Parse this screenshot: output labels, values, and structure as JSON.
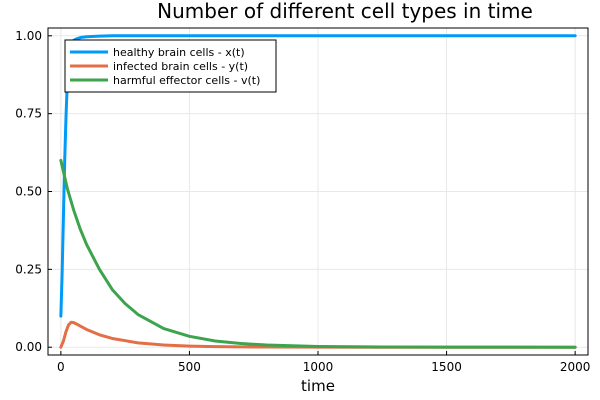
{
  "chart_data": {
    "type": "line",
    "title": "Number of different cell types in time",
    "xlabel": "time",
    "ylabel": "",
    "xlim": [
      -50,
      2050
    ],
    "ylim": [
      -0.025,
      1.025
    ],
    "xticks": [
      0,
      500,
      1000,
      1500,
      2000
    ],
    "xtick_labels": [
      "0",
      "500",
      "1000",
      "1500",
      "2000"
    ],
    "yticks": [
      0,
      0.25,
      0.5,
      0.75,
      1.0
    ],
    "ytick_labels": [
      "0.00",
      "0.25",
      "0.50",
      "0.75",
      "1.00"
    ],
    "grid": true,
    "legend_position": "top-left",
    "series": [
      {
        "name": "healthy brain cells - x(t)",
        "color": "#009af9",
        "x": [
          0,
          5,
          10,
          15,
          20,
          25,
          30,
          35,
          40,
          50,
          60,
          80,
          100,
          150,
          200,
          300,
          500,
          1000,
          1500,
          2000
        ],
        "y": [
          0.1,
          0.24,
          0.42,
          0.6,
          0.74,
          0.85,
          0.91,
          0.95,
          0.97,
          0.985,
          0.99,
          0.995,
          0.997,
          0.999,
          1.0,
          1.0,
          1.0,
          1.0,
          1.0,
          1.0
        ]
      },
      {
        "name": "infected brain cells - y(t)",
        "color": "#e26f46",
        "x": [
          0,
          10,
          20,
          30,
          40,
          50,
          60,
          80,
          100,
          150,
          200,
          300,
          400,
          500,
          600,
          800,
          1000,
          1500,
          2000
        ],
        "y": [
          0.0,
          0.02,
          0.05,
          0.072,
          0.08,
          0.079,
          0.075,
          0.066,
          0.057,
          0.04,
          0.028,
          0.014,
          0.007,
          0.0035,
          0.0018,
          0.0005,
          0.0001,
          0.0,
          0.0
        ]
      },
      {
        "name": "harmful effector cells - v(t)",
        "color": "#3da44d",
        "x": [
          0,
          25,
          50,
          75,
          100,
          150,
          200,
          250,
          300,
          400,
          500,
          600,
          700,
          800,
          1000,
          1200,
          1500,
          2000
        ],
        "y": [
          0.6,
          0.51,
          0.44,
          0.38,
          0.33,
          0.25,
          0.185,
          0.14,
          0.105,
          0.06,
          0.035,
          0.02,
          0.012,
          0.007,
          0.0025,
          0.001,
          0.0002,
          0.0
        ]
      }
    ]
  }
}
